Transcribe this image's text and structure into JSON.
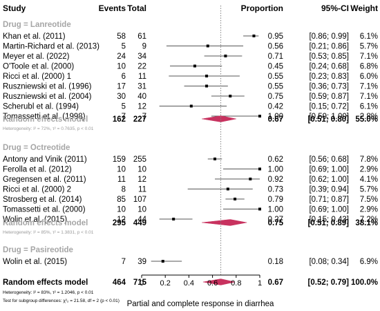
{
  "columns": {
    "study": "Study",
    "events": "Events",
    "total": "Total",
    "proportion": "Proportion",
    "ci": "95%-CI",
    "weight": "Weight"
  },
  "groups": [
    {
      "label": "Drug = Lanreotide",
      "studies": [
        {
          "study": "Khan et al. (2011)",
          "events": "58",
          "total": "61",
          "prop": 0.95,
          "lo": 0.86,
          "hi": 0.99,
          "prop_text": "0.95",
          "ci_text": "[0.86; 0.99]",
          "weight_text": "6.1%"
        },
        {
          "study": "Martin-Richard et al. (2013)",
          "events": "5",
          "total": "9",
          "prop": 0.56,
          "lo": 0.21,
          "hi": 0.86,
          "prop_text": "0.56",
          "ci_text": "[0.21; 0.86]",
          "weight_text": "5.7%"
        },
        {
          "study": "Meyer et al. (2022)",
          "events": "24",
          "total": "34",
          "prop": 0.71,
          "lo": 0.53,
          "hi": 0.85,
          "prop_text": "0.71",
          "ci_text": "[0.53; 0.85]",
          "weight_text": "7.1%"
        },
        {
          "study": "O'Toole et al. (2000)",
          "events": "10",
          "total": "22",
          "prop": 0.45,
          "lo": 0.24,
          "hi": 0.68,
          "prop_text": "0.45",
          "ci_text": "[0.24; 0.68]",
          "weight_text": "6.8%"
        },
        {
          "study": "Ricci et al. (2000) 1",
          "events": "6",
          "total": "11",
          "prop": 0.55,
          "lo": 0.23,
          "hi": 0.83,
          "prop_text": "0.55",
          "ci_text": "[0.23; 0.83]",
          "weight_text": "6.0%"
        },
        {
          "study": "Ruszniewski et al. (1996)",
          "events": "17",
          "total": "31",
          "prop": 0.55,
          "lo": 0.36,
          "hi": 0.73,
          "prop_text": "0.55",
          "ci_text": "[0.36; 0.73]",
          "weight_text": "7.1%"
        },
        {
          "study": "Ruszniewski et al. (2004)",
          "events": "30",
          "total": "40",
          "prop": 0.75,
          "lo": 0.59,
          "hi": 0.87,
          "prop_text": "0.75",
          "ci_text": "[0.59; 0.87]",
          "weight_text": "7.1%"
        },
        {
          "study": "Scherubl et al. (1994)",
          "events": "5",
          "total": "12",
          "prop": 0.42,
          "lo": 0.15,
          "hi": 0.72,
          "prop_text": "0.42",
          "ci_text": "[0.15; 0.72]",
          "weight_text": "6.1%"
        },
        {
          "study": "Tomassetti et al. (1998)",
          "events": "7",
          "total": "7",
          "prop": 1.0,
          "lo": 0.59,
          "hi": 1.0,
          "prop_text": "1.00",
          "ci_text": "[0.59; 1.00]",
          "weight_text": "2.8%"
        }
      ],
      "summary": {
        "label": "Random effects model",
        "events": "162",
        "total": "227",
        "prop": 0.67,
        "lo": 0.51,
        "hi": 0.8,
        "prop_text": "0.67",
        "ci_text": "[0.51; 0.80]",
        "weight_text": "55.0%"
      },
      "heterogeneity": "Heterogeneity: I² = 72%, τ² = 0.7635, p < 0.01"
    },
    {
      "label": "Drug = Octreotide",
      "studies": [
        {
          "study": "Antony and Vinik (2011)",
          "events": "159",
          "total": "255",
          "prop": 0.62,
          "lo": 0.56,
          "hi": 0.68,
          "prop_text": "0.62",
          "ci_text": "[0.56; 0.68]",
          "weight_text": "7.8%"
        },
        {
          "study": "Ferolla et al. (2012)",
          "events": "10",
          "total": "10",
          "prop": 1.0,
          "lo": 0.69,
          "hi": 1.0,
          "prop_text": "1.00",
          "ci_text": "[0.69; 1.00]",
          "weight_text": "2.9%"
        },
        {
          "study": "Gregensen et al. (2011)",
          "events": "11",
          "total": "12",
          "prop": 0.92,
          "lo": 0.62,
          "hi": 1.0,
          "prop_text": "0.92",
          "ci_text": "[0.62; 1.00]",
          "weight_text": "4.1%"
        },
        {
          "study": "Ricci et al. (2000) 2",
          "events": "8",
          "total": "11",
          "prop": 0.73,
          "lo": 0.39,
          "hi": 0.94,
          "prop_text": "0.73",
          "ci_text": "[0.39; 0.94]",
          "weight_text": "5.7%"
        },
        {
          "study": "Strosberg et al. (2014)",
          "events": "85",
          "total": "107",
          "prop": 0.79,
          "lo": 0.71,
          "hi": 0.87,
          "prop_text": "0.79",
          "ci_text": "[0.71; 0.87]",
          "weight_text": "7.5%"
        },
        {
          "study": "Tomassetti et al. (2000)",
          "events": "10",
          "total": "10",
          "prop": 1.0,
          "lo": 0.69,
          "hi": 1.0,
          "prop_text": "1.00",
          "ci_text": "[0.69; 1.00]",
          "weight_text": "2.9%"
        },
        {
          "study": "Wolin et al. (2015)",
          "events": "12",
          "total": "44",
          "prop": 0.27,
          "lo": 0.15,
          "hi": 0.43,
          "prop_text": "0.27",
          "ci_text": "[0.15; 0.43]",
          "weight_text": "7.2%"
        }
      ],
      "summary": {
        "label": "Random effects model",
        "events": "295",
        "total": "449",
        "prop": 0.75,
        "lo": 0.51,
        "hi": 0.89,
        "prop_text": "0.75",
        "ci_text": "[0.51; 0.89]",
        "weight_text": "38.1%"
      },
      "heterogeneity": "Heterogeneity: I² = 85%, τ² = 1.3831, p < 0.01"
    },
    {
      "label": "Drug = Pasireotide",
      "studies": [
        {
          "study": "Wolin et al. (2015)",
          "events": "7",
          "total": "39",
          "prop": 0.18,
          "lo": 0.08,
          "hi": 0.34,
          "prop_text": "0.18",
          "ci_text": "[0.08; 0.34]",
          "weight_text": "6.9%"
        }
      ]
    }
  ],
  "overall": {
    "label": "Random effects model",
    "events": "464",
    "total": "715",
    "prop": 0.67,
    "lo": 0.52,
    "hi": 0.79,
    "prop_text": "0.67",
    "ci_text": "[0.52; 0.79]",
    "weight_text": "100.0%"
  },
  "footnotes": {
    "heterogeneity": "Heterogeneity: I² = 83%, τ² = 1.2046, p < 0.01",
    "subgroup": "Test for subgroup differences: χ²₂ = 21.58, df = 2 (p < 0.01)"
  },
  "chart_data": {
    "type": "forest",
    "xlabel": "Partial and complete response in diarrhea",
    "xlim": [
      0,
      1
    ],
    "xticks": [
      "0",
      "0.2",
      "0.4",
      "0.6",
      "0.8",
      "1"
    ],
    "tick_values": [
      0,
      0.2,
      0.4,
      0.6,
      0.8,
      1
    ],
    "reference_line": 0.67,
    "reference_line_style": "dotted",
    "colors": {
      "diamond": "#c8325f",
      "ci_line": "#555555",
      "point": "#000000",
      "group_label": "#a6a6a6",
      "note": "#9a9a9a"
    }
  }
}
